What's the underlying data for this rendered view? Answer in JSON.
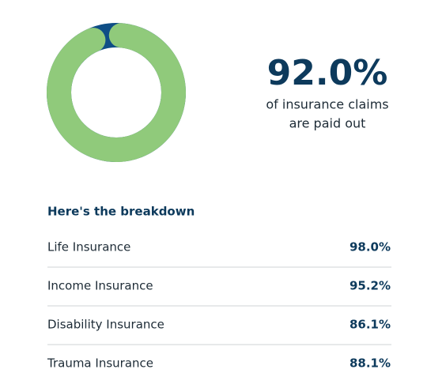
{
  "chart_data": {
    "type": "donut",
    "values": [
      92.0
    ],
    "value_labels": [
      "92.0%"
    ],
    "colors": {
      "value": "#90ca7b",
      "rest": "#0f4e86"
    },
    "caption": [
      "of insurance claims",
      "are paid out"
    ]
  },
  "breakdown": {
    "title": "Here's the breakdown",
    "categories": [
      "Life Insurance",
      "Income Insurance",
      "Disability Insurance",
      "Trauma Insurance"
    ],
    "values": [
      98.0,
      95.2,
      86.1,
      88.1
    ],
    "value_labels": [
      "98.0%",
      "95.2%",
      "86.1%",
      "88.1%"
    ]
  }
}
